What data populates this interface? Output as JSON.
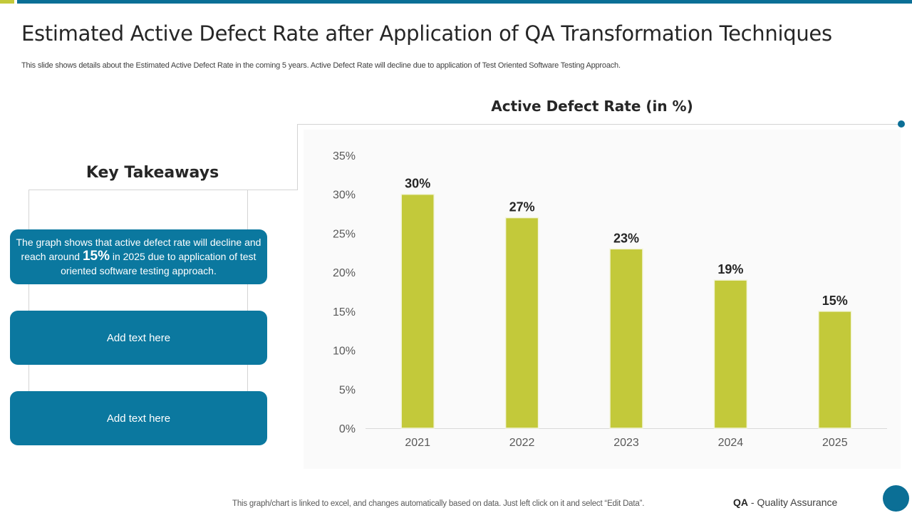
{
  "slide": {
    "title": "Estimated Active Defect Rate after Application of QA Transformation Techniques",
    "subtitle": "This slide shows details about the Estimated  Active  Defect Rate in the coming 5 years. Active  Defect Rate will decline due to application of Test Oriented Software Testing Approach.",
    "colors": {
      "primary": "#0b789f",
      "accent": "#c3c93a",
      "text": "#262626"
    }
  },
  "takeaways": {
    "heading": "Key Takeaways",
    "cards": [
      {
        "before": "The graph shows that active defect rate will  decline and reach around ",
        "highlight": "15%",
        "after": " in 2025 due to application of test oriented software testing approach."
      },
      {
        "text": "Add text here"
      },
      {
        "text": "Add text here"
      }
    ]
  },
  "chart_data": {
    "type": "bar",
    "title": "Active Defect Rate (in %)",
    "categories": [
      "2021",
      "2022",
      "2023",
      "2024",
      "2025"
    ],
    "values": [
      30,
      27,
      23,
      19,
      15
    ],
    "data_labels": [
      "30%",
      "27%",
      "23%",
      "19%",
      "15%"
    ],
    "yticks": [
      "0%",
      "5%",
      "10%",
      "15%",
      "20%",
      "25%",
      "30%",
      "35%"
    ],
    "ylim": [
      0,
      35
    ],
    "xlabel": "",
    "ylabel": "",
    "grid": false,
    "legend": "none",
    "bar_color": "#c3c93a"
  },
  "footer": {
    "note": "This graph/chart is linked to excel,  and changes automatically based on data. Just left click on it and select “Edit Data”.",
    "abbr": "QA",
    "abbr_full": " - Quality Assurance"
  }
}
